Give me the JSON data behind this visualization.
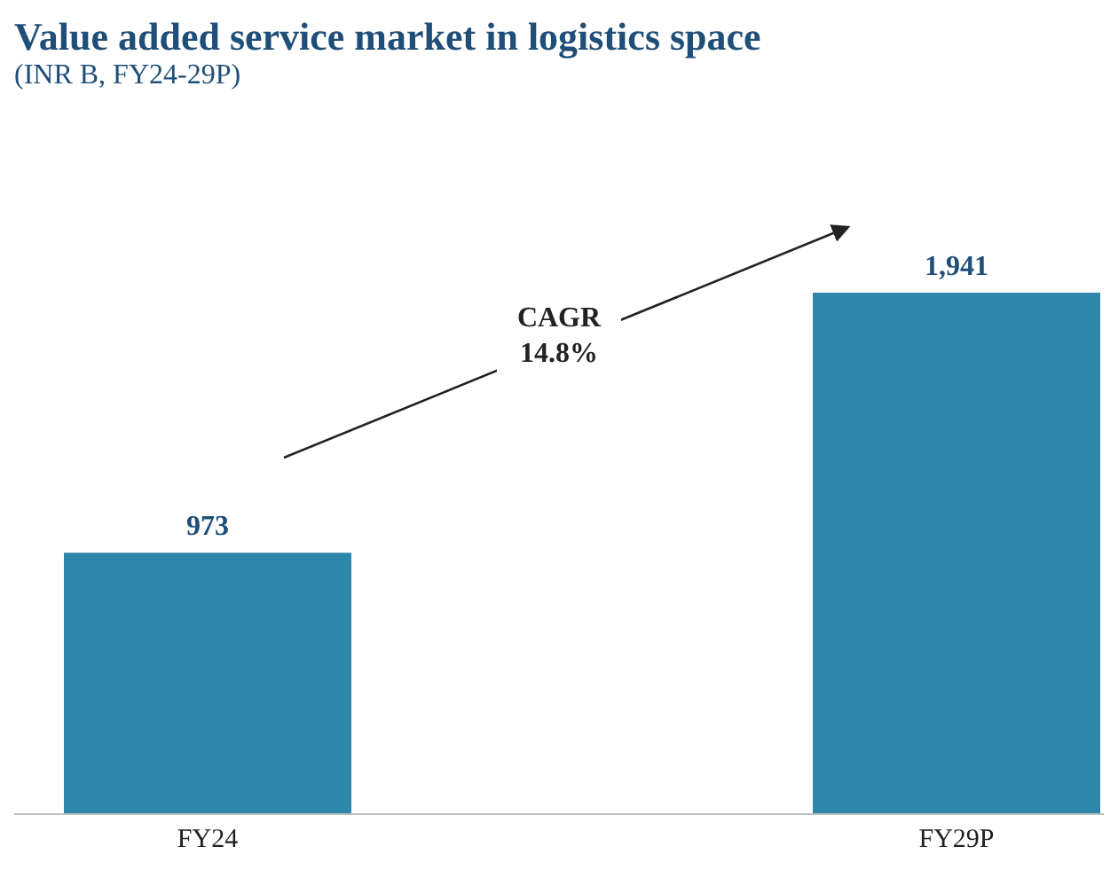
{
  "chart_data": {
    "type": "bar",
    "title": "Value added service market in logistics space",
    "subtitle": "(INR B, FY24-29P)",
    "categories": [
      "FY24",
      "FY29P"
    ],
    "values": [
      973,
      1941
    ],
    "color": "#2e86ab",
    "value_labels": [
      "973",
      "1,941"
    ],
    "annotations": [
      "CAGR 14.8%"
    ]
  }
}
